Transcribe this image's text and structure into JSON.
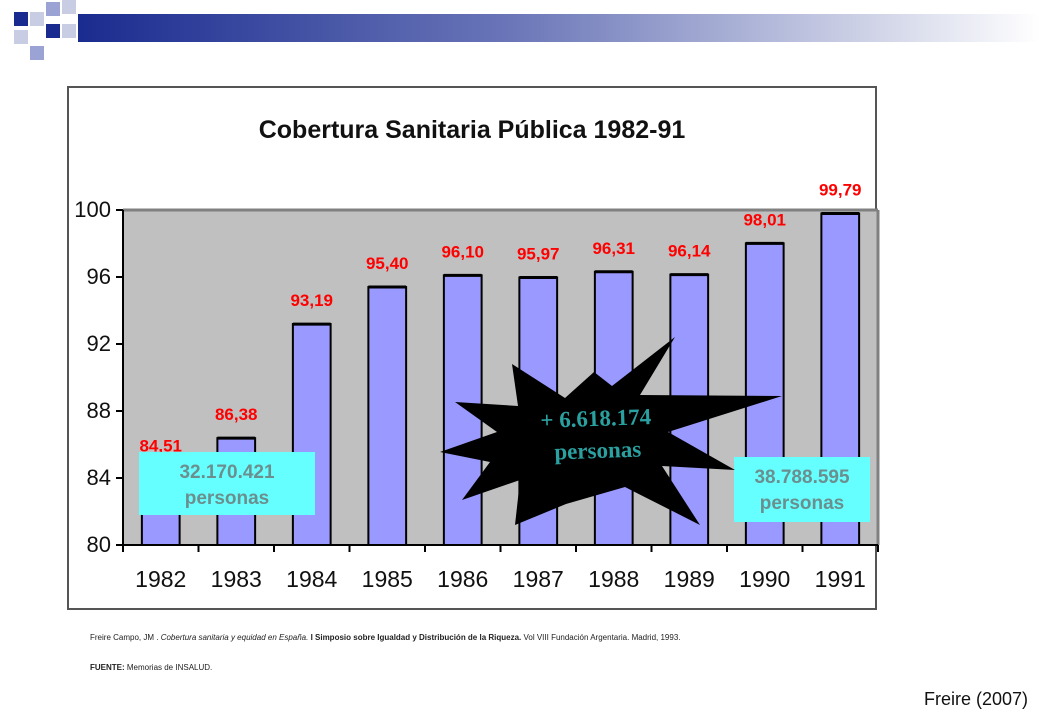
{
  "decor": {
    "colors": {
      "dark": "#1a2b8f",
      "mid": "#9aa3d4",
      "light": "#c9cde4"
    }
  },
  "chart_data": {
    "type": "bar",
    "title": "Cobertura Sanitaria Pública 1982-91",
    "categories": [
      "1982",
      "1983",
      "1984",
      "1985",
      "1986",
      "1987",
      "1988",
      "1989",
      "1990",
      "1991"
    ],
    "values": [
      84.51,
      86.38,
      93.19,
      95.4,
      96.1,
      95.97,
      96.31,
      96.14,
      98.01,
      99.79
    ],
    "value_labels": [
      "84,51",
      "86,38",
      "93,19",
      "95,40",
      "96,10",
      "95,97",
      "96,31",
      "96,14",
      "98,01",
      "99,79"
    ],
    "ylim": [
      80,
      100
    ],
    "yticks": [
      80,
      84,
      88,
      92,
      96,
      100
    ],
    "grid": false,
    "colors": {
      "bar": "#9999ff",
      "plot_bg": "#c0c0c0",
      "label": "#ff0000"
    },
    "annotations": {
      "start": {
        "line1": "32.170.421",
        "line2": "personas"
      },
      "end": {
        "line1": "38.788.595",
        "line2": "personas"
      },
      "burst": {
        "line1": "+ 6.618.174",
        "line2": "personas"
      }
    }
  },
  "reference": {
    "author": "Freire Campo, JM . ",
    "title_italic": "Cobertura sanitaria y equidad en España.",
    "rest_bold": " I Simposio sobre Igualdad y Distribución de la Riqueza.",
    "rest": " Vol VIII Fundación Argentaria. Madrid, 1993.",
    "source_label": "FUENTE:",
    "source_text": " Memorias de INSALUD."
  },
  "credit": "Freire (2007)"
}
